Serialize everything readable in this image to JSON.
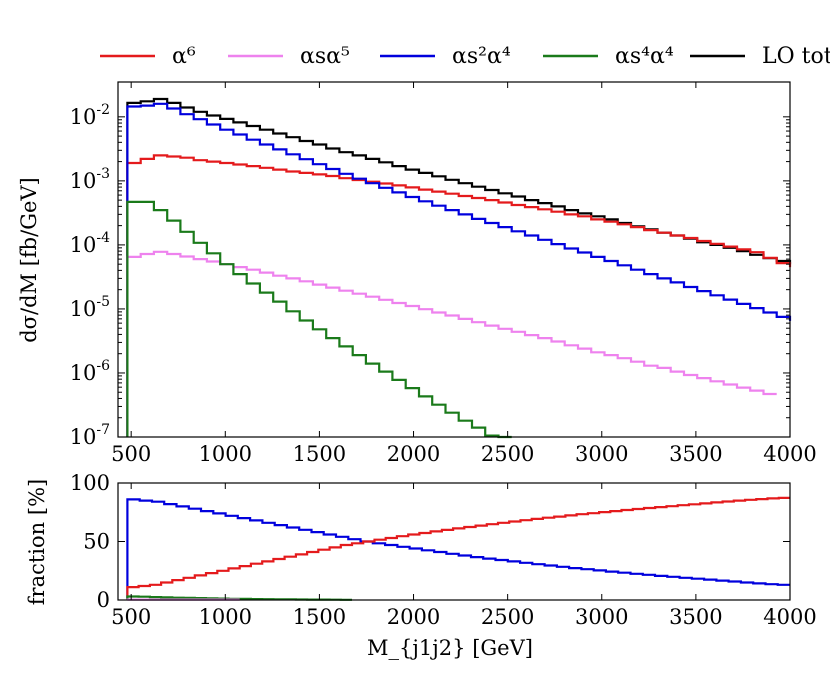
{
  "chart_data": [
    {
      "type": "line",
      "step": true,
      "yscale": "log",
      "xlim": [
        430,
        4000
      ],
      "ylim": [
        1e-07,
        0.035
      ],
      "xlabel": "",
      "ylabel": "dσ/dM [fb/GeV]",
      "xticks": [
        "500",
        "1000",
        "1500",
        "2000",
        "2500",
        "3000",
        "3500",
        "4000"
      ],
      "yticks": [
        {
          "base": "10",
          "exp": "-2",
          "value": 0.01
        },
        {
          "base": "10",
          "exp": "-3",
          "value": 0.001
        },
        {
          "base": "10",
          "exp": "-4",
          "value": 0.0001
        },
        {
          "base": "10",
          "exp": "-5",
          "value": 1e-05
        },
        {
          "base": "10",
          "exp": "-6",
          "value": 1e-06
        },
        {
          "base": "10",
          "exp": "-7",
          "value": 1e-07
        }
      ],
      "legend": {
        "placement": "top, outside",
        "entries": [
          {
            "label": "α⁶",
            "color": "#e41a1c"
          },
          {
            "label": "αsα⁵",
            "color": "#ee82ee"
          },
          {
            "label": "αs²α⁴",
            "color": "#0000dd"
          },
          {
            "label": "αs⁴α⁴",
            "color": "#1a7a1a"
          },
          {
            "label": "LO total",
            "color": "#000000"
          }
        ]
      },
      "bin_edges_start": 480,
      "bin_width": 70,
      "series": [
        {
          "name": "LO total",
          "color": "#000000",
          "values": [
            0.0165,
            0.0175,
            0.019,
            0.0165,
            0.014,
            0.012,
            0.0105,
            0.0093,
            0.0082,
            0.0072,
            0.0063,
            0.0055,
            0.0048,
            0.0042,
            0.0037,
            0.0032,
            0.0028,
            0.0025,
            0.0022,
            0.00195,
            0.0017,
            0.0015,
            0.00133,
            0.00118,
            0.00104,
            0.00092,
            0.00081,
            0.00072,
            0.00064,
            0.00057,
            0.0005,
            0.00045,
            0.0004,
            0.00035,
            0.00031,
            0.00028,
            0.00025,
            0.00022,
            0.000195,
            0.000175,
            0.000155,
            0.00014,
            0.000125,
            0.00011,
            0.0001,
            9e-05,
            8e-05,
            7e-05,
            6.2e-05,
            5.6e-05,
            5e-05
          ]
        },
        {
          "name": "α⁶",
          "color": "#e41a1c",
          "values": [
            0.0019,
            0.0022,
            0.0025,
            0.0024,
            0.0023,
            0.0021,
            0.002,
            0.0019,
            0.0018,
            0.0017,
            0.0016,
            0.0015,
            0.0014,
            0.00133,
            0.00126,
            0.00119,
            0.0011,
            0.00103,
            0.00097,
            0.00091,
            0.00085,
            0.00079,
            0.00073,
            0.00068,
            0.00063,
            0.00058,
            0.00054,
            0.0005,
            0.00046,
            0.00042,
            0.00039,
            0.00036,
            0.00033,
            0.0003,
            0.00028,
            0.00025,
            0.00023,
            0.00021,
            0.00019,
            0.00017,
            0.000155,
            0.00014,
            0.000128,
            0.000115,
            0.000104,
            9.4e-05,
            8.5e-05,
            7.7e-05,
            6.3e-05,
            5.2e-05,
            4.5e-05
          ]
        },
        {
          "name": "αs²α⁴",
          "color": "#0000dd",
          "values": [
            0.0145,
            0.015,
            0.016,
            0.0135,
            0.011,
            0.0092,
            0.0076,
            0.0063,
            0.0053,
            0.0044,
            0.0037,
            0.0031,
            0.0026,
            0.00218,
            0.00182,
            0.00153,
            0.00129,
            0.00108,
            0.00092,
            0.00078,
            0.00066,
            0.00056,
            0.00048,
            0.00041,
            0.00035,
            0.0003,
            0.000255,
            0.00022,
            0.00019,
            0.000163,
            0.00014,
            0.00012,
            0.000103,
            8.8e-05,
            7.6e-05,
            6.5e-05,
            5.6e-05,
            4.8e-05,
            4.1e-05,
            3.5e-05,
            3e-05,
            2.6e-05,
            2.2e-05,
            1.9e-05,
            1.63e-05,
            1.4e-05,
            1.2e-05,
            1.03e-05,
            8.8e-06,
            7.5e-06,
            6.5e-06
          ]
        },
        {
          "name": "αsα⁵",
          "color": "#ee82ee",
          "values": [
            6.5e-05,
            7.2e-05,
            7.8e-05,
            7.2e-05,
            6.6e-05,
            6e-05,
            5.5e-05,
            5e-05,
            4.5e-05,
            4.1e-05,
            3.7e-05,
            3.3e-05,
            3e-05,
            2.7e-05,
            2.4e-05,
            2.15e-05,
            1.93e-05,
            1.73e-05,
            1.55e-05,
            1.39e-05,
            1.24e-05,
            1.11e-05,
            9.9e-06,
            8.8e-06,
            7.9e-06,
            7e-06,
            6.2e-06,
            5.5e-06,
            4.9e-06,
            4.4e-06,
            3.9e-06,
            3.5e-06,
            3.1e-06,
            2.7e-06,
            2.4e-06,
            2.1e-06,
            1.9e-06,
            1.7e-06,
            1.5e-06,
            1.3e-06,
            1.2e-06,
            1.05e-06,
            9.3e-07,
            8.3e-07,
            7.4e-07,
            6.6e-07,
            5.9e-07,
            5.3e-07,
            4.7e-07
          ]
        },
        {
          "name": "αs⁴α⁴",
          "color": "#1a7a1a",
          "values": [
            0.00047,
            0.00047,
            0.00035,
            0.00024,
            0.00016,
            0.000108,
            7.4e-05,
            5e-05,
            3.5e-05,
            2.5e-05,
            1.8e-05,
            1.3e-05,
            9.2e-06,
            6.6e-06,
            4.8e-06,
            3.5e-06,
            2.6e-06,
            1.9e-06,
            1.4e-06,
            1.05e-06,
            7.8e-07,
            5.8e-07,
            4.3e-07,
            3.2e-07,
            2.4e-07,
            1.8e-07,
            1.4e-07,
            1.05e-07,
            8e-08
          ]
        }
      ]
    },
    {
      "type": "line",
      "step": true,
      "xlim": [
        430,
        4000
      ],
      "ylim": [
        0,
        100
      ],
      "xlabel": "M_{j1j2} [GeV]",
      "ylabel": "fraction [%]",
      "xticks": [
        "500",
        "1000",
        "1500",
        "2000",
        "2500",
        "3000",
        "3500",
        "4000"
      ],
      "yticks": [
        "0",
        "50",
        "100"
      ],
      "series": [
        {
          "name": "αs²α⁴",
          "color": "#0000dd",
          "values": [
            86,
            85,
            84,
            82,
            80,
            78,
            76,
            74,
            72,
            70,
            68,
            66,
            64,
            62,
            60,
            58,
            56,
            54,
            52,
            50,
            48.5,
            47,
            45.5,
            44,
            42.5,
            41,
            39.5,
            38,
            36.7,
            35.4,
            34.2,
            33,
            31.8,
            30.6,
            29.5,
            28.4,
            27.3,
            26.3,
            25.3,
            24.3,
            23.3,
            22.4,
            21.5,
            20.6,
            19.8,
            19,
            18.2,
            17.4,
            16.6,
            15.8,
            15,
            14.2,
            13.5,
            13
          ]
        },
        {
          "name": "α⁶",
          "color": "#e41a1c",
          "values": [
            11,
            12,
            13,
            15,
            17,
            19,
            21,
            23,
            25,
            27,
            29,
            31,
            33,
            35,
            37,
            39,
            41,
            43,
            45,
            47,
            48.5,
            50,
            51.5,
            53,
            54.5,
            56,
            57.3,
            58.6,
            59.9,
            61.2,
            62.4,
            63.6,
            64.8,
            66,
            67.1,
            68.2,
            69.3,
            70.3,
            71.3,
            72.3,
            73.3,
            74.2,
            75.1,
            76,
            76.9,
            77.8,
            78.6,
            79.4,
            80.2,
            81,
            81.8,
            82.6,
            83.4,
            84.2,
            85,
            85.6,
            86.2,
            86.8,
            87.3
          ]
        },
        {
          "name": "αs⁴α⁴",
          "color": "#1a7a1a",
          "values": [
            3,
            2.8,
            2.5,
            2.2,
            2,
            1.8,
            1.6,
            1.4,
            1.2,
            1,
            0.9,
            0.8,
            0.7,
            0.6,
            0.5,
            0.4,
            0.35,
            0.3,
            0.25,
            0.2
          ]
        },
        {
          "name": "αsα⁵",
          "color": "#ee82ee",
          "values": [
            0.3,
            0.3,
            0.3,
            0.3,
            0.3,
            0.3,
            0.3,
            0.3,
            0.3,
            0.3
          ]
        }
      ]
    }
  ]
}
